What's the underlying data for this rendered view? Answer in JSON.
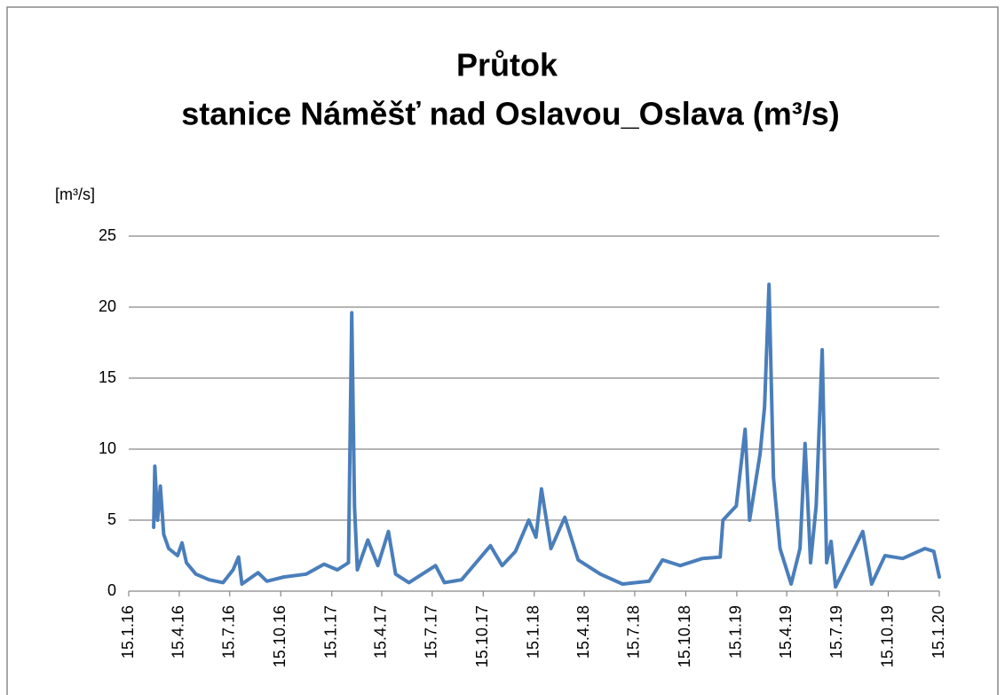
{
  "chart_data": {
    "type": "line",
    "title": "Průtok",
    "subtitle": "stanice Náměšť nad Oslavou_Oslava (m³/s)",
    "y_label": "[m³/s]",
    "color": "#4a7ebb",
    "grid": true,
    "ylim": [
      0,
      25
    ],
    "yticks": [
      0,
      5,
      10,
      15,
      20,
      25
    ],
    "xlim": [
      "15.1.16",
      "15.1.20"
    ],
    "xticks": [
      "15.1.16",
      "15.4.16",
      "15.7.16",
      "15.10.16",
      "15.1.17",
      "15.4.17",
      "15.7.17",
      "15.10.17",
      "15.1.18",
      "15.4.18",
      "15.7.18",
      "15.10.18",
      "15.1.19",
      "15.4.19",
      "15.7.19",
      "15.10.19",
      "15.1.20"
    ],
    "x": [
      "29.2.16",
      "2.3.16",
      "7.3.16",
      "12.3.16",
      "18.3.16",
      "27.3.16",
      "12.4.16",
      "20.4.16",
      "28.4.16",
      "15.5.16",
      "8.6.16",
      "3.7.16",
      "21.7.16",
      "31.7.16",
      "6.8.16",
      "4.9.16",
      "20.9.16",
      "21.10.16",
      "30.11.16",
      "1.1.17",
      "25.1.17",
      "14.2.17",
      "20.2.17",
      "25.2.17",
      "2.3.17",
      "21.3.17",
      "8.4.17",
      "27.4.17",
      "10.5.17",
      "3.6.17",
      "21.7.17",
      "6.8.17",
      "6.9.17",
      "28.10.17",
      "18.11.17",
      "12.12.17",
      "5.1.18",
      "18.1.18",
      "28.1.18",
      "14.2.18",
      "11.3.18",
      "4.4.18",
      "14.5.18",
      "23.6.18",
      "10.8.18",
      "3.9.18",
      "5.10.18",
      "14.11.18",
      "16.12.18",
      "21.12.18",
      "14.1.19",
      "30.1.19",
      "7.2.19",
      "26.2.19",
      "6.3.19",
      "14.3.19",
      "22.3.19",
      "3.4.19",
      "23.4.19",
      "9.5.19",
      "18.5.19",
      "28.5.19",
      "7.6.19",
      "18.6.19",
      "26.6.19",
      "4.7.19",
      "12.7.19",
      "30.8.19",
      "15.9.19",
      "9.10.19",
      "10.11.19",
      "20.12.19",
      "5.1.20",
      "15.1.20"
    ],
    "values": [
      4.5,
      8.8,
      5,
      7.4,
      4,
      3,
      2.5,
      3.4,
      2,
      1.2,
      0.8,
      0.6,
      1.5,
      2.4,
      0.5,
      1.3,
      0.7,
      1.0,
      1.2,
      1.9,
      1.5,
      2,
      19.6,
      6,
      1.5,
      3.6,
      1.8,
      4.2,
      1.2,
      0.6,
      1.8,
      0.6,
      0.8,
      3.2,
      1.8,
      2.8,
      5,
      3.8,
      7.2,
      3,
      5.2,
      2.2,
      1.2,
      0.5,
      0.7,
      2.2,
      1.8,
      2.3,
      2.4,
      5,
      6,
      11.4,
      5,
      9.7,
      13,
      21.6,
      8,
      3,
      0.5,
      3,
      10.4,
      2,
      6,
      17,
      2,
      3.5,
      0.3,
      4.2,
      0.5,
      2.5,
      2.3,
      3,
      2.8,
      1.0
    ]
  }
}
